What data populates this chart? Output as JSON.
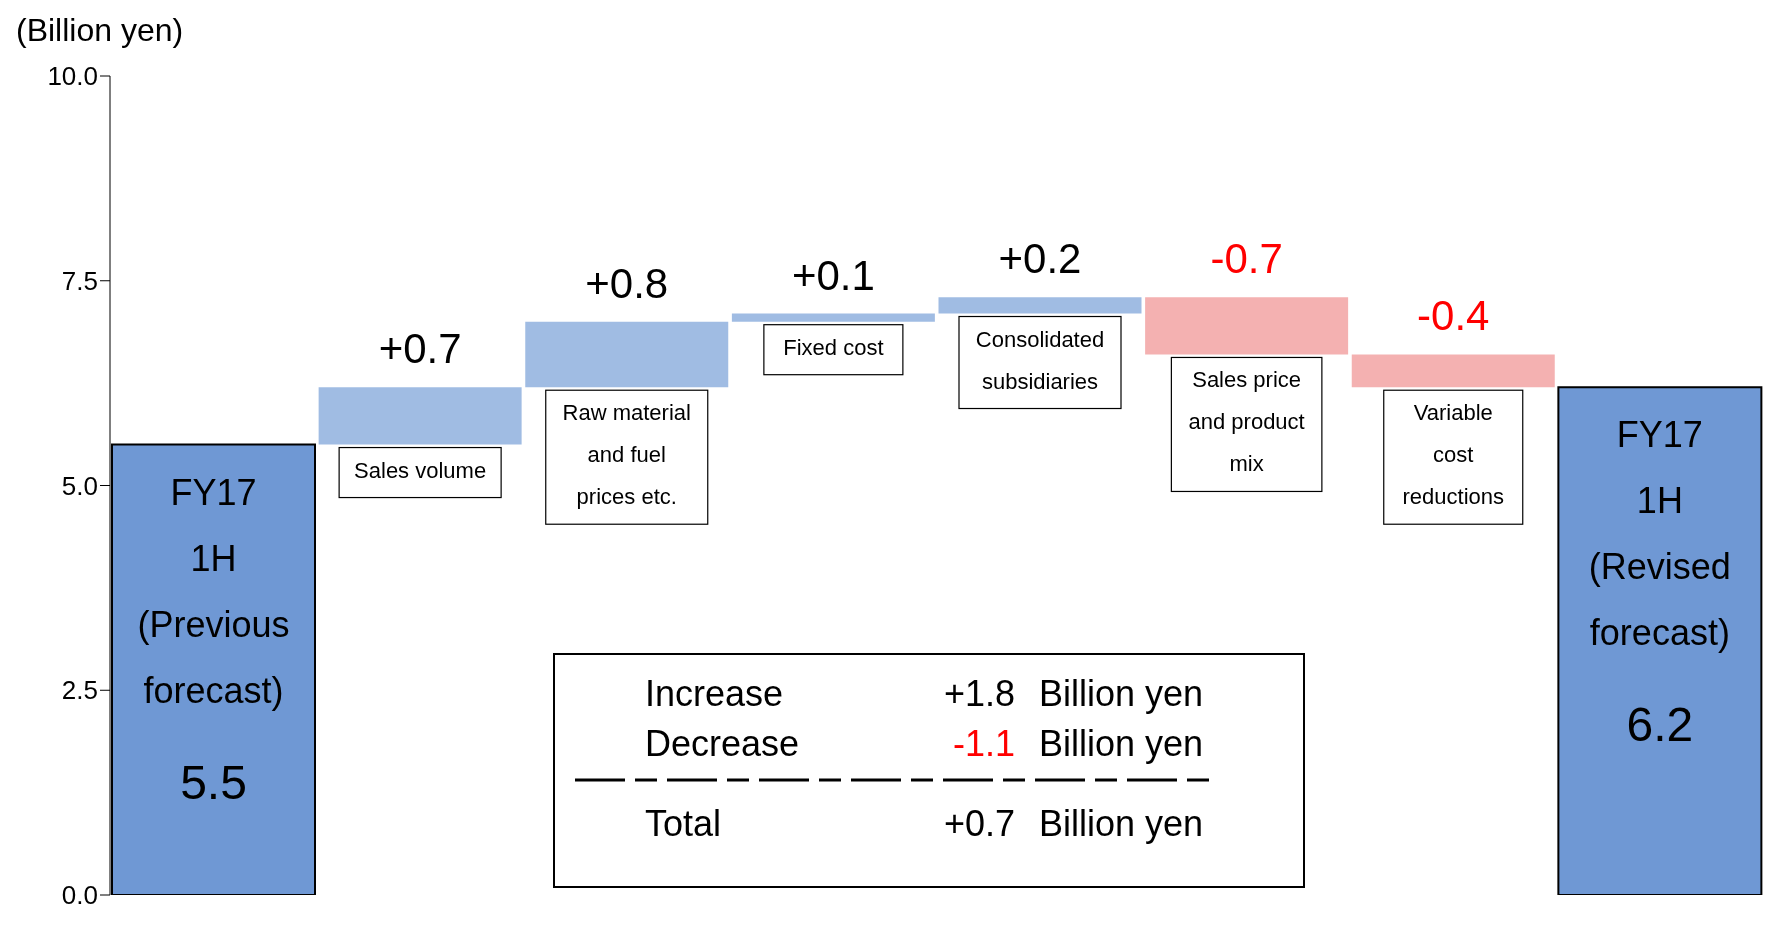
{
  "chart_data": {
    "type": "bar",
    "ylabel": "(Billion yen)",
    "categories": [
      "FY17 1H (Previous forecast)",
      "Sales volume",
      "Raw material and fuel prices etc.",
      "Fixed cost",
      "Consolidated subsidiaries",
      "Sales price and product mix",
      "Variable cost reductions",
      "FY17 1H (Revised forecast)"
    ],
    "values": [
      5.5,
      0.7,
      0.8,
      0.1,
      0.2,
      -0.7,
      -0.4,
      6.2
    ],
    "base": [
      0,
      5.5,
      6.2,
      7.0,
      7.1,
      7.3,
      6.6,
      0
    ],
    "colors": [
      "#6f98d4",
      "#a0bce3",
      "#a0bce3",
      "#a0bce3",
      "#a0bce3",
      "#f4b1b1",
      "#f4b1b1",
      "#6f98d4"
    ],
    "value_labels": [
      "5.5",
      "+0.7",
      "+0.8",
      "+0.1",
      "+0.2",
      "-0.7",
      "-0.4",
      "6.2"
    ],
    "ylim": [
      0,
      10
    ],
    "yticks": [
      {
        "value": 0,
        "label": "0.0"
      },
      {
        "value": 2.5,
        "label": "2.5"
      },
      {
        "value": 5,
        "label": "5.0"
      },
      {
        "value": 7.5,
        "label": "7.5"
      },
      {
        "value": 10,
        "label": "10.0"
      }
    ],
    "grid": false,
    "legend": false,
    "annotations": [
      "Increase +1.8 Billion yen",
      "Decrease -1.1 Billion yen",
      "Total +0.7 Billion yen"
    ]
  }
}
